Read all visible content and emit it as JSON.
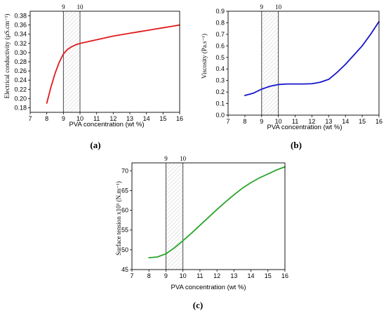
{
  "chart_data": [
    {
      "type": "line",
      "panel_label": "(a)",
      "xlabel": "PVA concentration (wt %)",
      "ylabel": "Electrical conductivity (µS.cm⁻¹)",
      "xlim": [
        7,
        16
      ],
      "ylim": [
        0.17,
        0.39
      ],
      "xticks": [
        7,
        8,
        9,
        10,
        11,
        12,
        13,
        14,
        15,
        16
      ],
      "yticks": [
        0.18,
        0.2,
        0.22,
        0.24,
        0.26,
        0.28,
        0.3,
        0.32,
        0.34,
        0.36,
        0.38
      ],
      "ytick_labels": [
        "0.18",
        "0.20",
        "0.22",
        "0.24",
        "0.26",
        "0.28",
        "0.30",
        "0.32",
        "0.34",
        "0.36",
        "0.38"
      ],
      "shaded_region": [
        9,
        10
      ],
      "region_labels": [
        "9",
        "10"
      ],
      "color": "#e11a1a",
      "series": [
        {
          "x": [
            8,
            8.25,
            8.5,
            8.75,
            9,
            9.25,
            9.5,
            9.75,
            10,
            10.5,
            11,
            11.5,
            12,
            12.5,
            13,
            13.5,
            14,
            14.5,
            15,
            15.5,
            16
          ],
          "y": [
            0.19,
            0.225,
            0.255,
            0.279,
            0.297,
            0.307,
            0.313,
            0.317,
            0.32,
            0.324,
            0.328,
            0.332,
            0.336,
            0.339,
            0.342,
            0.345,
            0.348,
            0.351,
            0.354,
            0.357,
            0.36
          ]
        }
      ]
    },
    {
      "type": "line",
      "panel_label": "(b)",
      "xlabel": "PVA concentration (wt %)",
      "ylabel": "Viscosity (Pa.s⁻¹)",
      "xlim": [
        7,
        16
      ],
      "ylim": [
        0,
        0.9
      ],
      "xticks": [
        7,
        8,
        9,
        10,
        11,
        12,
        13,
        14,
        15,
        16
      ],
      "yticks": [
        0,
        0.1,
        0.2,
        0.3,
        0.4,
        0.5,
        0.6,
        0.7,
        0.8,
        0.9
      ],
      "ytick_labels": [
        "0.0",
        "0.1",
        "0.2",
        "0.3",
        "0.4",
        "0.5",
        "0.6",
        "0.7",
        "0.8",
        "0.9"
      ],
      "shaded_region": [
        9,
        10
      ],
      "region_labels": [
        "9",
        "10"
      ],
      "color": "#1515cc",
      "series": [
        {
          "x": [
            8,
            8.5,
            9,
            9.5,
            10,
            10.5,
            11,
            11.5,
            12,
            12.5,
            13,
            13.5,
            14,
            14.5,
            15,
            15.5,
            16
          ],
          "y": [
            0.17,
            0.19,
            0.225,
            0.25,
            0.265,
            0.27,
            0.27,
            0.27,
            0.272,
            0.285,
            0.31,
            0.37,
            0.44,
            0.52,
            0.6,
            0.7,
            0.81
          ]
        }
      ]
    },
    {
      "type": "line",
      "panel_label": "(c)",
      "xlabel": "PVA concentration (wt %)",
      "ylabel": "Surface tension x10³ (N.m⁻¹)",
      "xlim": [
        7,
        16
      ],
      "ylim": [
        45,
        72
      ],
      "xticks": [
        7,
        8,
        9,
        10,
        11,
        12,
        13,
        14,
        15,
        16
      ],
      "yticks": [
        45,
        50,
        55,
        60,
        65,
        70
      ],
      "ytick_labels": [
        "45",
        "50",
        "55",
        "60",
        "65",
        "70"
      ],
      "shaded_region": [
        9,
        10
      ],
      "region_labels": [
        "9",
        "10"
      ],
      "color": "#2aa52a",
      "series": [
        {
          "x": [
            8,
            8.5,
            9,
            9.5,
            10,
            10.5,
            11,
            11.5,
            12,
            12.5,
            13,
            13.5,
            14,
            14.5,
            15,
            15.5,
            16
          ],
          "y": [
            48,
            48.2,
            49,
            50.5,
            52.3,
            54.2,
            56.2,
            58.2,
            60.2,
            62.1,
            63.9,
            65.6,
            67.0,
            68.2,
            69.2,
            70.2,
            71.0
          ]
        }
      ]
    }
  ]
}
